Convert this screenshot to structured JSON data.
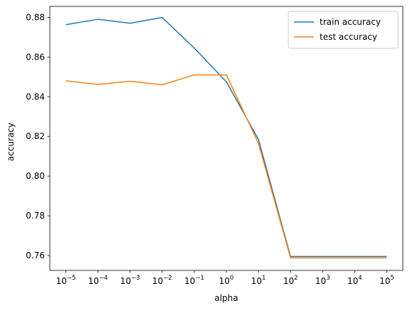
{
  "chart_data": {
    "type": "line",
    "xlabel": "alpha",
    "ylabel": "accuracy",
    "xscale": "log",
    "x": [
      1e-05,
      0.0001,
      0.001,
      0.01,
      0.1,
      1,
      10,
      100,
      1000,
      10000,
      100000
    ],
    "x_tick_labels": [
      {
        "base": "10",
        "exp": "−5"
      },
      {
        "base": "10",
        "exp": "−4"
      },
      {
        "base": "10",
        "exp": "−3"
      },
      {
        "base": "10",
        "exp": "−2"
      },
      {
        "base": "10",
        "exp": "−1"
      },
      {
        "base": "10",
        "exp": "0"
      },
      {
        "base": "10",
        "exp": "1"
      },
      {
        "base": "10",
        "exp": "2"
      },
      {
        "base": "10",
        "exp": "3"
      },
      {
        "base": "10",
        "exp": "4"
      },
      {
        "base": "10",
        "exp": "5"
      }
    ],
    "y_ticks": [
      "0.76",
      "0.78",
      "0.80",
      "0.82",
      "0.84",
      "0.86",
      "0.88"
    ],
    "ylim": [
      0.7525,
      0.8855
    ],
    "grid": false,
    "legend_position": "top-right",
    "series": [
      {
        "name": "train accuracy",
        "color": "#1f77b4",
        "values": [
          0.8763,
          0.879,
          0.877,
          0.8799,
          0.8645,
          0.8475,
          0.8185,
          0.7595,
          0.7595,
          0.7595,
          0.7595
        ]
      },
      {
        "name": "test accuracy",
        "color": "#ff7f0e",
        "values": [
          0.848,
          0.8462,
          0.8478,
          0.846,
          0.851,
          0.851,
          0.8165,
          0.7588,
          0.7588,
          0.7588,
          0.7588
        ]
      }
    ]
  }
}
